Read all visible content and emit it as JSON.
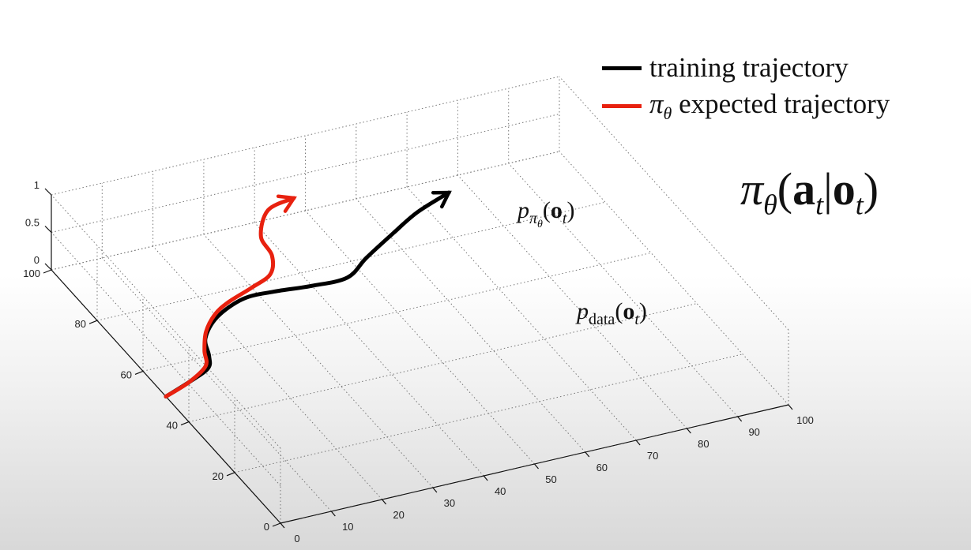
{
  "chart_data": {
    "type": "line",
    "projection": "3d",
    "xlim": [
      0,
      100
    ],
    "ylim": [
      0,
      100
    ],
    "zlim": [
      0,
      1
    ],
    "x_ticks": [
      "0",
      "10",
      "20",
      "30",
      "40",
      "50",
      "60",
      "70",
      "80",
      "90",
      "100"
    ],
    "y_ticks": [
      "0",
      "20",
      "40",
      "60",
      "80",
      "100"
    ],
    "z_ticks": [
      "0",
      "0.5",
      "1"
    ],
    "grid": true,
    "legend_position": "top-right",
    "series": [
      {
        "name": "training trajectory",
        "color": "#000000",
        "arrow_end": true,
        "points": [
          [
            0,
            50
          ],
          [
            6,
            53
          ],
          [
            11,
            56
          ],
          [
            13,
            60
          ],
          [
            15,
            66
          ],
          [
            20,
            72
          ],
          [
            27,
            76
          ],
          [
            33,
            76
          ],
          [
            40,
            75
          ],
          [
            47,
            75
          ],
          [
            53,
            80
          ],
          [
            61,
            86
          ],
          [
            68,
            91
          ],
          [
            76,
            95
          ]
        ]
      },
      {
        "name": "π_θ expected trajectory",
        "color": "#e8210f",
        "arrow_end": true,
        "points": [
          [
            0,
            50
          ],
          [
            6,
            53
          ],
          [
            11,
            57
          ],
          [
            13,
            62
          ],
          [
            16,
            68
          ],
          [
            20,
            73
          ],
          [
            24,
            76
          ],
          [
            30,
            79
          ],
          [
            35,
            82
          ],
          [
            38,
            88
          ],
          [
            39,
            95
          ],
          [
            44,
            103
          ],
          [
            50,
            105
          ]
        ]
      }
    ]
  },
  "legend": [
    {
      "label": "training trajectory",
      "color": "#000000"
    },
    {
      "label_symbol": "π",
      "label_sub": "θ",
      "label_rest": " expected trajectory",
      "color": "#e8210f"
    }
  ],
  "formula": {
    "pi": "π",
    "theta": "θ",
    "open": "(",
    "a": "a",
    "t1": "t",
    "bar": "|",
    "o": "o",
    "t2": "t",
    "close": ")"
  },
  "annotations": {
    "p_pi": {
      "p": "p",
      "pi": "π",
      "theta": "θ",
      "open": "(",
      "o": "o",
      "t": "t",
      "close": ")"
    },
    "p_data": {
      "p": "p",
      "sub": "data",
      "open": "(",
      "o": "o",
      "t": "t",
      "close": ")"
    }
  }
}
